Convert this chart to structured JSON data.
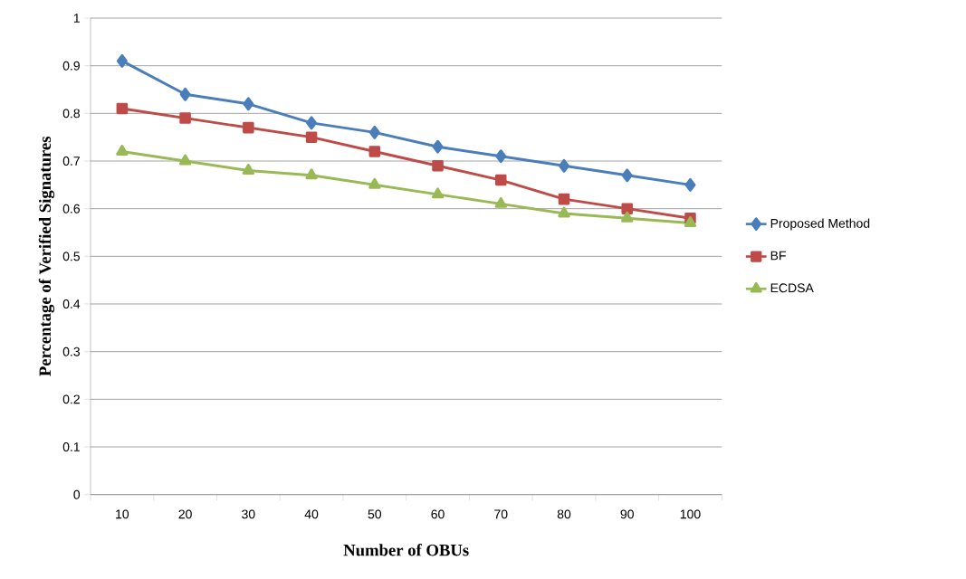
{
  "chart_data": {
    "type": "line",
    "xlabel": "Number of OBUs",
    "ylabel": "Percentage of Verified Signatures",
    "categories": [
      "10",
      "20",
      "30",
      "40",
      "50",
      "60",
      "70",
      "80",
      "90",
      "100"
    ],
    "series": [
      {
        "name": "Proposed Method",
        "color": "#4a7ebb",
        "marker": "diamond",
        "values": [
          0.91,
          0.84,
          0.82,
          0.78,
          0.76,
          0.73,
          0.71,
          0.69,
          0.67,
          0.65
        ]
      },
      {
        "name": "BF",
        "color": "#be4b48",
        "marker": "square",
        "values": [
          0.81,
          0.79,
          0.77,
          0.75,
          0.72,
          0.69,
          0.66,
          0.62,
          0.6,
          0.58
        ]
      },
      {
        "name": "ECDSA",
        "color": "#98b954",
        "marker": "triangle",
        "values": [
          0.72,
          0.7,
          0.68,
          0.67,
          0.65,
          0.63,
          0.61,
          0.59,
          0.58,
          0.57
        ]
      }
    ],
    "ylim": [
      0,
      1
    ],
    "yticks": [
      0,
      0.1,
      0.2,
      0.3,
      0.4,
      0.5,
      0.6,
      0.7,
      0.8,
      0.9,
      1
    ],
    "grid": "y",
    "legend": "right"
  }
}
